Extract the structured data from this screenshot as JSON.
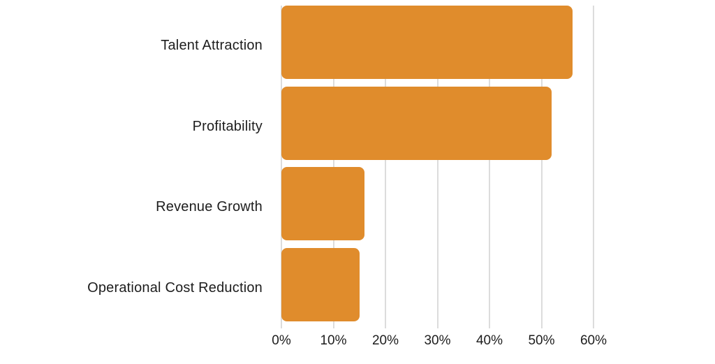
{
  "chart_data": {
    "type": "bar",
    "orientation": "horizontal",
    "title": "",
    "xlabel": "",
    "ylabel": "",
    "categories": [
      "Talent Attraction",
      "Profitability",
      "Revenue Growth",
      "Operational Cost Reduction"
    ],
    "values": [
      56,
      52,
      16,
      15
    ],
    "unit": "%",
    "xlim": [
      0,
      60
    ],
    "xticks": [
      0,
      10,
      20,
      30,
      40,
      50,
      60
    ],
    "xtick_labels": [
      "0%",
      "10%",
      "20%",
      "30%",
      "40%",
      "50%",
      "60%"
    ],
    "grid": true,
    "legend": false,
    "bar_color": "#E08C2C",
    "grid_color": "#DCDCDC",
    "text_color": "#1D1D1D",
    "background": "#FFFFFF"
  }
}
